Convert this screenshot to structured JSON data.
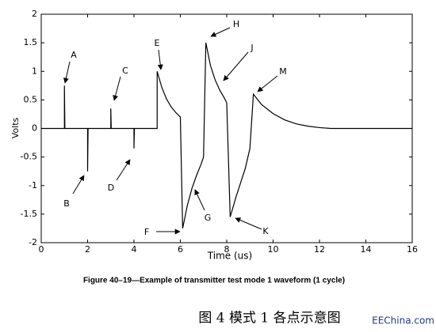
{
  "chart_data": {
    "type": "line",
    "xlabel": "Time (us)",
    "ylabel": "Volts",
    "x": [
      0,
      1,
      1,
      1.02,
      2,
      2,
      2.02,
      3,
      3,
      3.02,
      4,
      4,
      4.02,
      5,
      5,
      5.2,
      5.4,
      5.6,
      5.8,
      6,
      6.1,
      6.3,
      6.5,
      6.7,
      6.9,
      7,
      7.1,
      7.3,
      7.5,
      7.7,
      7.9,
      8,
      8.15,
      8.4,
      8.6,
      8.8,
      9,
      9.15,
      9.5,
      10,
      10.5,
      11,
      11.5,
      12,
      12.5,
      16
    ],
    "values": [
      0,
      0,
      0.75,
      0,
      0,
      -0.75,
      0,
      0,
      0.35,
      0,
      0,
      -0.35,
      0,
      0,
      1.0,
      0.72,
      0.52,
      0.38,
      0.28,
      0.2,
      -1.75,
      -1.35,
      -1.05,
      -0.82,
      -0.62,
      -0.5,
      1.5,
      1.1,
      0.85,
      0.67,
      0.53,
      0.45,
      -1.55,
      -1.2,
      -0.95,
      -0.7,
      -0.35,
      0.6,
      0.42,
      0.26,
      0.15,
      0.08,
      0.04,
      0.015,
      0,
      0
    ],
    "color": "#000000",
    "xlim": [
      0,
      16
    ],
    "xticks": [
      0,
      2,
      4,
      6,
      8,
      10,
      12,
      14,
      16
    ],
    "ylim": [
      -2,
      2
    ],
    "yticks": [
      -2,
      -1.5,
      -1,
      -0.5,
      0,
      0.5,
      1,
      1.5,
      2
    ],
    "grid": false,
    "annotations": [
      "A",
      "B",
      "C",
      "D",
      "E",
      "F",
      "G",
      "H",
      "J",
      "K",
      "M"
    ]
  },
  "figure_caption": "Figure 40–19—Example of transmitter test mode 1 waveform (1 cycle)",
  "chinese_caption": "图 4 模式 1 各点示意图",
  "watermark": "EEChina.com"
}
